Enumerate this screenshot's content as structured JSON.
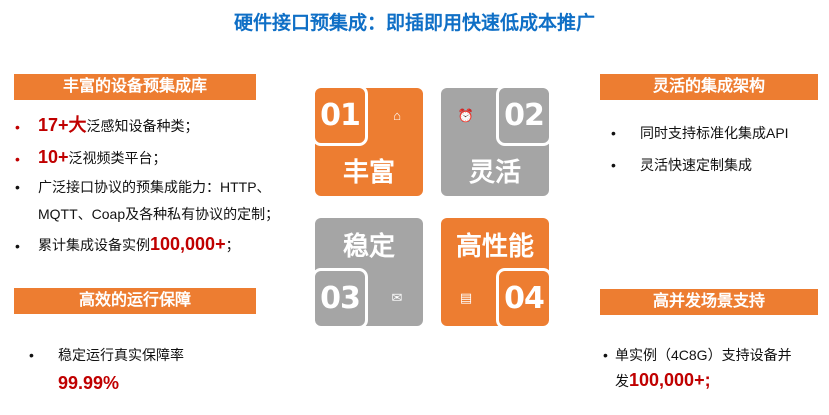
{
  "title": "硬件接口预集成：即插即用快速低成本推广",
  "left_top": {
    "header": "丰富的设备预集成库",
    "items": [
      {
        "em": "17+大",
        "text": "泛感知设备种类；"
      },
      {
        "em": "10+",
        "text": "泛视频类平台；"
      },
      {
        "text": "广泛接口协议的预集成能力：HTTP、",
        "text2": "MQTT、Coap及各种私有协议的定制；"
      },
      {
        "text": "累计集成设备实例",
        "em": "100,000+",
        "tail": "；"
      }
    ]
  },
  "left_bottom": {
    "header": "高效的运行保障",
    "text": "稳定运行真实保障率",
    "em": "99.99%"
  },
  "right_top": {
    "header": "灵活的集成架构",
    "items": [
      "同时支持标准化集成API",
      "灵活快速定制集成"
    ]
  },
  "right_bottom": {
    "header": "高并发场景支持",
    "text": "单实例（4C8G）支持设备并",
    "text2": "发",
    "em": "100,000+;"
  },
  "quadrants": [
    {
      "num": "01",
      "label": "丰富",
      "icon": "home-icon",
      "color": "#ed7d31"
    },
    {
      "num": "02",
      "label": "灵活",
      "icon": "alarm-clock-icon",
      "color": "#a5a5a5"
    },
    {
      "num": "03",
      "label": "稳定",
      "icon": "envelope-icon",
      "color": "#a5a5a5"
    },
    {
      "num": "04",
      "label": "高性能",
      "icon": "chat-icon",
      "color": "#ed7d31"
    }
  ],
  "bullet": "•",
  "colors": {
    "accent": "#ed7d31",
    "gray": "#a5a5a5",
    "title": "#0f6fc6",
    "emphasis": "#c00000"
  }
}
